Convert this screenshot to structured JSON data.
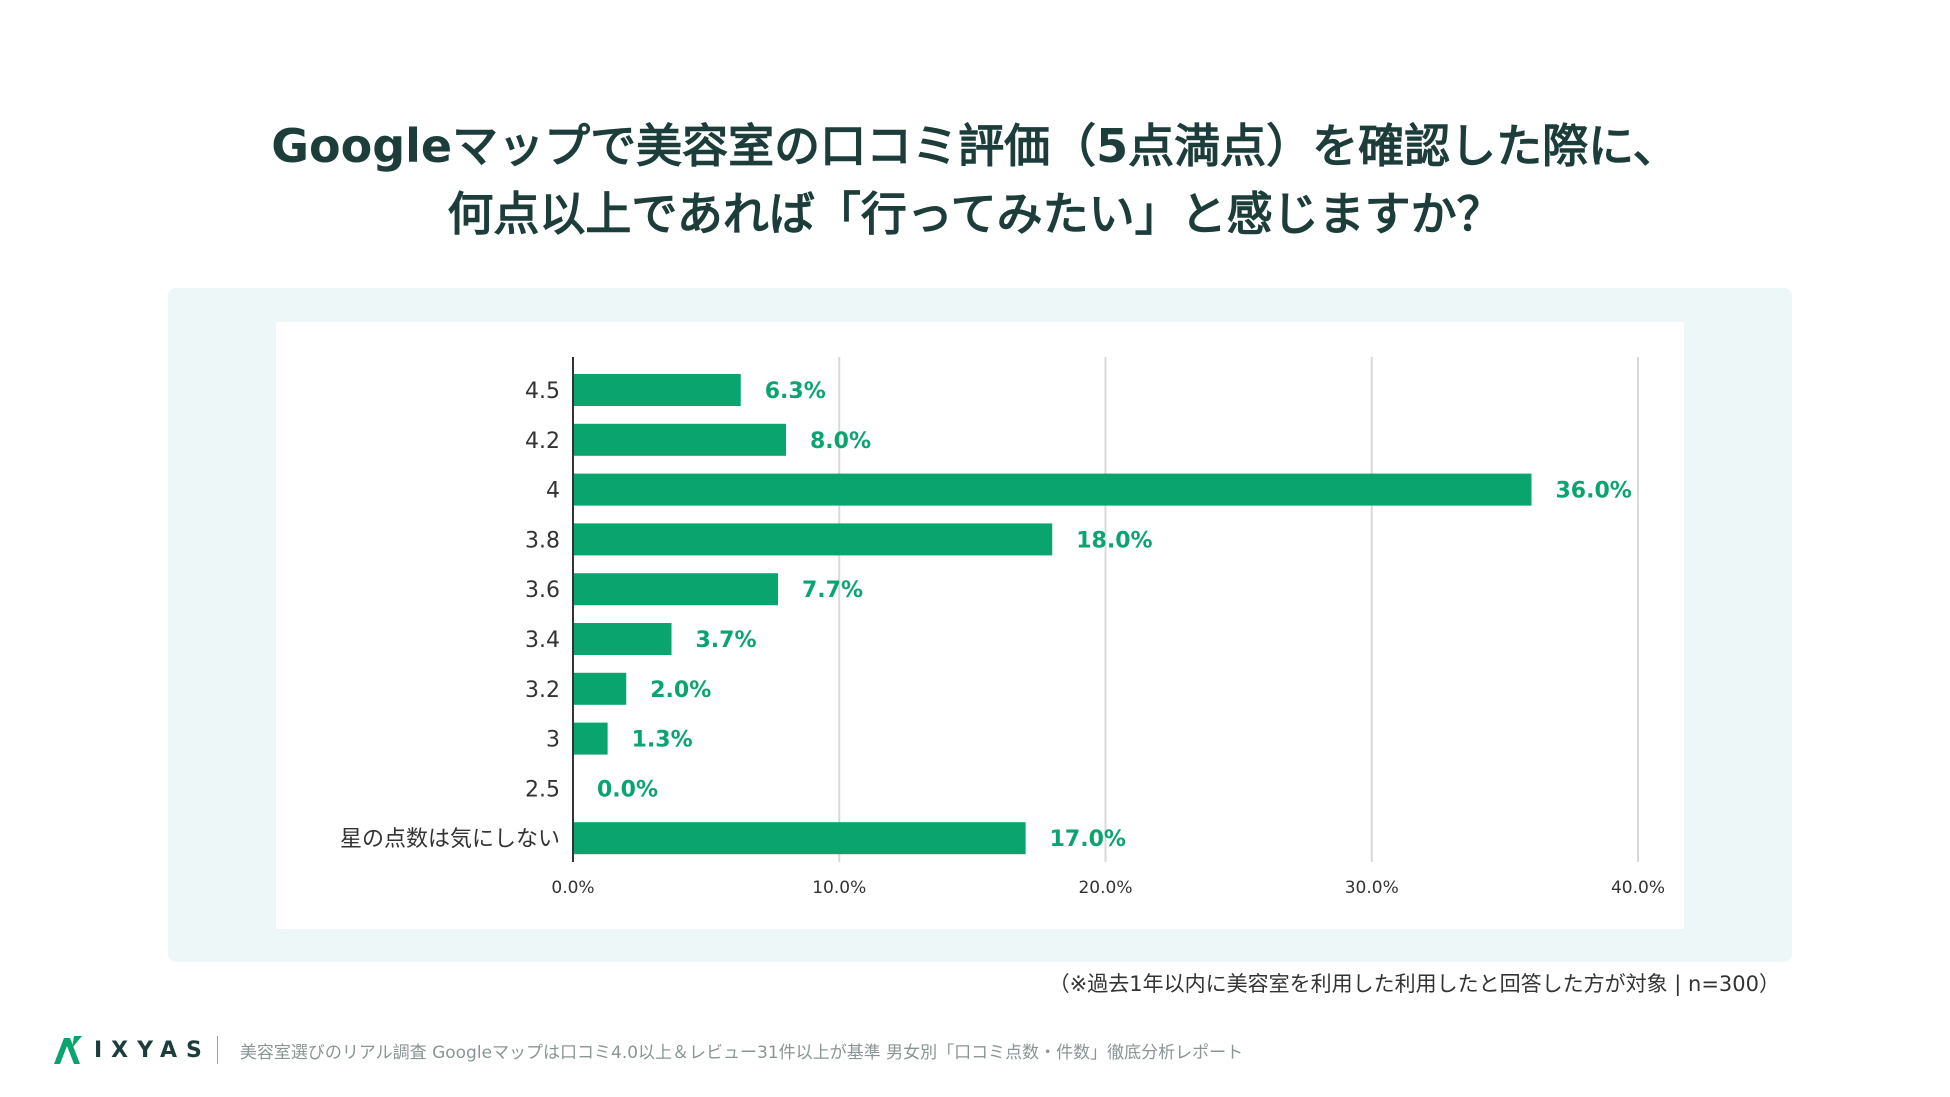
{
  "title": {
    "line1": "Googleマップで美容室の口コミ評価（5点満点）を確認した際に、",
    "line2": "何点以上であれば「行ってみたい」と感じますか？"
  },
  "note": "（※過去1年以内に美容室を利用した利用したと回答した方が対象 | n=300）",
  "footer": {
    "logo_text": "IXYAS",
    "source": "美容室選びのリアル調査 Googleマップは口コミ4.0以上＆レビュー31件以上が基準 男女別「口コミ点数・件数」徹底分析レポート"
  },
  "colors": {
    "bar": "#0aa56e",
    "label": "#0aa56e",
    "title": "#1c3d3a",
    "panel": "#edf7f7",
    "grid": "#d9d9d9"
  },
  "chart_data": {
    "type": "bar",
    "orientation": "horizontal",
    "categories": [
      "4.5",
      "4.2",
      "4",
      "3.8",
      "3.6",
      "3.4",
      "3.2",
      "3",
      "2.5",
      "星の点数は気にしない"
    ],
    "values": [
      6.3,
      8.0,
      36.0,
      18.0,
      7.7,
      3.7,
      2.0,
      1.3,
      0.0,
      17.0
    ],
    "value_labels": [
      "6.3%",
      "8.0%",
      "36.0%",
      "18.0%",
      "7.7%",
      "3.7%",
      "2.0%",
      "1.3%",
      "0.0%",
      "17.0%"
    ],
    "x_ticks": [
      "0.0%",
      "10.0%",
      "20.0%",
      "30.0%",
      "40.0%"
    ],
    "xlim": [
      0,
      40
    ],
    "grid": true
  }
}
